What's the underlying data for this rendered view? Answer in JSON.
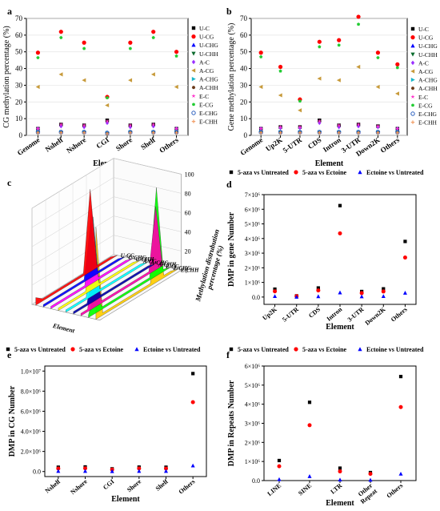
{
  "panel_labels": {
    "a": "a",
    "b": "b",
    "c": "c",
    "d": "d",
    "e": "e",
    "f": "f"
  },
  "colors": {
    "U-C": "#000000",
    "U-CG": "#ff0000",
    "U-CHG": "#0000ff",
    "U-CHH": "#0b6b2e",
    "A-C": "#9b30ff",
    "A-CG": "#c79a3a",
    "A-CHG": "#19b6c9",
    "A-CHH": "#6b3a1a",
    "E-C": "#ff33cc",
    "E-CG": "#22cc33",
    "E-CHG": "#2a5fbf",
    "E-CHH": "#f2a06a",
    "5-aza vs Untreated": "#000000",
    "5-aza vs Ectoine": "#ff0000",
    "Ectoine vs Untreated": "#0000ff"
  },
  "chart_data": [
    {
      "id": "a",
      "type": "scatter",
      "title": "",
      "xlabel": "Element",
      "ylabel": "CG methylation percentage (%)",
      "ylim": [
        0,
        70
      ],
      "yticks": [
        0,
        10,
        20,
        30,
        40,
        50,
        60,
        70
      ],
      "grid": true,
      "legend_position": "right",
      "categories": [
        "Genome",
        "Nshelf",
        "Nshore",
        "CGI",
        "Shore",
        "Shelf",
        "Others"
      ],
      "series": [
        {
          "name": "U-C",
          "marker": "square",
          "values": [
            4,
            6.5,
            6,
            9,
            6,
            6.5,
            4
          ]
        },
        {
          "name": "U-CG",
          "marker": "circle",
          "values": [
            49.5,
            62,
            55.5,
            23,
            55.5,
            62,
            50
          ]
        },
        {
          "name": "U-CHG",
          "marker": "triangle",
          "values": [
            2,
            2,
            2,
            1.5,
            2,
            2,
            2
          ]
        },
        {
          "name": "U-CHH",
          "marker": "triangle-down",
          "values": [
            1.5,
            1.5,
            1.5,
            1,
            1.5,
            1.5,
            1.5
          ]
        },
        {
          "name": "A-C",
          "marker": "diamond",
          "values": [
            4,
            5.5,
            5,
            7.5,
            5,
            5.5,
            4
          ]
        },
        {
          "name": "A-CG",
          "marker": "triangle-left",
          "values": [
            29,
            36.5,
            33,
            18,
            33,
            36.5,
            29
          ]
        },
        {
          "name": "A-CHG",
          "marker": "triangle-right",
          "values": [
            2,
            2,
            2,
            1.5,
            2,
            2,
            2
          ]
        },
        {
          "name": "A-CHH",
          "marker": "hexagon",
          "values": [
            1.5,
            1.5,
            1.5,
            1,
            1.5,
            1.5,
            1.5
          ]
        },
        {
          "name": "E-C",
          "marker": "star",
          "values": [
            4,
            6.5,
            6,
            8.5,
            6,
            6.5,
            4
          ]
        },
        {
          "name": "E-CG",
          "marker": "pentagon",
          "values": [
            46.5,
            58.5,
            52,
            22.5,
            52,
            58.5,
            47.5
          ]
        },
        {
          "name": "E-CHG",
          "marker": "circle-open",
          "values": [
            2,
            2,
            2,
            1.5,
            2,
            2,
            2
          ]
        },
        {
          "name": "E-CHH",
          "marker": "plus",
          "values": [
            1.5,
            1.5,
            1.5,
            1,
            1.5,
            1.5,
            1.5
          ]
        }
      ]
    },
    {
      "id": "b",
      "type": "scatter",
      "title": "",
      "xlabel": "Element",
      "ylabel": "Gene methylation percentage (%)",
      "ylim": [
        0,
        70
      ],
      "yticks": [
        0,
        10,
        20,
        30,
        40,
        50,
        60,
        70
      ],
      "grid": true,
      "legend_position": "right",
      "categories": [
        "Genome",
        "Up2K",
        "5-UTR",
        "CDS",
        "Intron",
        "3-UTR",
        "Down2K",
        "Others"
      ],
      "series": [
        {
          "name": "U-C",
          "marker": "square",
          "values": [
            4,
            5,
            5,
            9,
            6,
            6.5,
            5.5,
            4
          ]
        },
        {
          "name": "U-CG",
          "marker": "circle",
          "values": [
            49.5,
            41,
            21.5,
            56,
            57,
            71,
            49.5,
            42.5
          ]
        },
        {
          "name": "U-CHG",
          "marker": "triangle",
          "values": [
            2,
            2,
            2,
            2,
            2,
            2,
            2,
            2
          ]
        },
        {
          "name": "U-CHH",
          "marker": "triangle-down",
          "values": [
            1.5,
            1.5,
            1.5,
            1.5,
            1.5,
            1.5,
            1.5,
            1.5
          ]
        },
        {
          "name": "A-C",
          "marker": "diamond",
          "values": [
            4,
            4.5,
            4.5,
            7.5,
            5,
            5.5,
            5,
            4
          ]
        },
        {
          "name": "A-CG",
          "marker": "triangle-left",
          "values": [
            29,
            24,
            15,
            34,
            33,
            41,
            29,
            25
          ]
        },
        {
          "name": "A-CHG",
          "marker": "triangle-right",
          "values": [
            2,
            2,
            2,
            2,
            2,
            2,
            2,
            2
          ]
        },
        {
          "name": "A-CHH",
          "marker": "hexagon",
          "values": [
            1.5,
            1.5,
            1.5,
            1.5,
            1.5,
            1.5,
            1.5,
            1.5
          ]
        },
        {
          "name": "E-C",
          "marker": "star",
          "values": [
            4,
            5,
            5,
            8.5,
            6,
            6.5,
            5.5,
            4
          ]
        },
        {
          "name": "E-CG",
          "marker": "pentagon",
          "values": [
            47,
            38.5,
            20.5,
            53,
            54,
            66.5,
            46.5,
            40.5
          ]
        },
        {
          "name": "E-CHG",
          "marker": "circle-open",
          "values": [
            2,
            2,
            2,
            2,
            2,
            2,
            2,
            2
          ]
        },
        {
          "name": "E-CHH",
          "marker": "plus",
          "values": [
            1.5,
            1.5,
            1.5,
            1.5,
            1.5,
            1.5,
            1.5,
            1.5
          ]
        }
      ]
    },
    {
      "id": "c",
      "type": "area",
      "title": "",
      "xlabel": "Element",
      "zlabel": "Methylation distrubution percentage (%)",
      "zlim": [
        0,
        100
      ],
      "zticks": [
        0,
        20,
        40,
        60,
        80,
        100
      ],
      "grid": true,
      "series_labels": [
        "U-CG",
        "U-CHG",
        "U-CHH",
        "A-CG",
        "A-CHG",
        "A-CHH",
        "E-CG",
        "E-CHG",
        "E-CHH"
      ],
      "series_colors": [
        "#ff0000",
        "#0000ff",
        "#ff00ff",
        "#ffff00",
        "#00ffff",
        "#0000aa",
        "#ff00aa",
        "#00ff00",
        "#ffcc00"
      ],
      "peaks": [
        96,
        24,
        68,
        34,
        82,
        55,
        78,
        60,
        86,
        48,
        92,
        66
      ]
    },
    {
      "id": "d",
      "type": "scatter",
      "title": "",
      "xlabel": "Element",
      "ylabel": "DMP in gene Number",
      "ylim": [
        -500000,
        7000000
      ],
      "ytick_values": [
        0,
        1000000,
        2000000,
        3000000,
        4000000,
        5000000,
        6000000,
        7000000
      ],
      "ytick_labels": [
        "0.0",
        "1×10⁶",
        "2×10⁶",
        "3×10⁶",
        "4×10⁶",
        "5×10⁶",
        "6×10⁶",
        "7×10⁶"
      ],
      "grid": false,
      "legend_position": "top",
      "categories": [
        "Up2K",
        "5-UTR",
        "CDS",
        "Intron",
        "3-UTR",
        "Down2K",
        "Others"
      ],
      "series": [
        {
          "name": "5-aza vs Untreated",
          "marker": "square",
          "values": [
            540000,
            80000,
            620000,
            6250000,
            380000,
            560000,
            3800000
          ]
        },
        {
          "name": "5-aza vs Ectoine",
          "marker": "circle",
          "values": [
            390000,
            60000,
            450000,
            4350000,
            270000,
            380000,
            2700000
          ]
        },
        {
          "name": "Ectoine vs Untreated",
          "marker": "triangle",
          "values": [
            50000,
            5000,
            40000,
            300000,
            30000,
            50000,
            280000
          ]
        }
      ]
    },
    {
      "id": "e",
      "type": "scatter",
      "title": "",
      "xlabel": "Element",
      "ylabel": "DMP in CG Number",
      "ylim": [
        -500000,
        10500000
      ],
      "ytick_values": [
        0,
        2000000,
        4000000,
        6000000,
        8000000,
        10000000
      ],
      "ytick_labels": [
        "0.0",
        "2.0×10⁶",
        "4.0×10⁶",
        "6.0×10⁶",
        "8.0×10⁶",
        "1.0×10⁷"
      ],
      "grid": false,
      "legend_position": "top",
      "categories": [
        "Nshelf",
        "Nshore",
        "CGI",
        "Shore",
        "Shelf",
        "Others"
      ],
      "series": [
        {
          "name": "5-aza vs Untreated",
          "marker": "square",
          "values": [
            430000,
            460000,
            270000,
            440000,
            430000,
            9750000
          ]
        },
        {
          "name": "5-aza vs Ectoine",
          "marker": "circle",
          "values": [
            300000,
            320000,
            200000,
            310000,
            300000,
            6900000
          ]
        },
        {
          "name": "Ectoine vs Untreated",
          "marker": "triangle",
          "values": [
            40000,
            40000,
            20000,
            40000,
            40000,
            580000
          ]
        }
      ]
    },
    {
      "id": "f",
      "type": "scatter",
      "title": "",
      "xlabel": "Element",
      "ylabel": "DMP in Repeats Number",
      "ylim": [
        0,
        6000000
      ],
      "ytick_values": [
        0,
        1000000,
        2000000,
        3000000,
        4000000,
        5000000,
        6000000
      ],
      "ytick_labels": [
        "0.0",
        "1×10⁶",
        "2×10⁶",
        "3×10⁶",
        "4×10⁶",
        "5×10⁶",
        "6×10⁶"
      ],
      "grid": false,
      "legend_position": "top",
      "categories": [
        "LINE",
        "SINE",
        "LTR",
        "Other Repeat",
        "Others"
      ],
      "tick_lines": [
        [
          "LINE"
        ],
        [
          "SINE"
        ],
        [
          "LTR"
        ],
        [
          "Other",
          "Repeat"
        ],
        [
          "Others"
        ]
      ],
      "series": [
        {
          "name": "5-aza vs Untreated",
          "marker": "square",
          "values": [
            1050000,
            4100000,
            650000,
            420000,
            5450000
          ]
        },
        {
          "name": "5-aza vs Ectoine",
          "marker": "circle",
          "values": [
            750000,
            2900000,
            480000,
            350000,
            3850000
          ]
        },
        {
          "name": "Ectoine vs Untreated",
          "marker": "triangle",
          "values": [
            60000,
            220000,
            40000,
            30000,
            350000
          ]
        }
      ]
    }
  ]
}
